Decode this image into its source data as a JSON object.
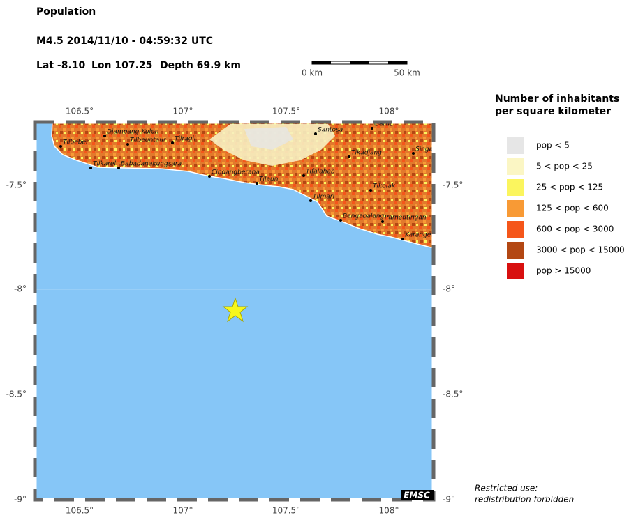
{
  "header": {
    "title": "Population",
    "event": "M4.5  2014/11/10 - 04:59:32 UTC",
    "lat": "Lat -8.10",
    "lon": "Lon 107.25",
    "depth": "Depth  69.9 km"
  },
  "scale": {
    "start": "0 km",
    "end": "50 km"
  },
  "map": {
    "lon_labels": [
      "106.5°",
      "107°",
      "107.5°",
      "108°"
    ],
    "lat_labels": [
      "-7.5°",
      "-8°",
      "-8.5°",
      "-9°"
    ],
    "places": [
      "Tilbeber",
      "Djampang Kulon",
      "Tilbeuntaur",
      "Tilragil",
      "Tilkarel",
      "Babadanakungsara",
      "Cindangberana",
      "Tilaun",
      "Santosa",
      "Garut",
      "Tikadjang",
      "Singa",
      "Tifalahab",
      "Tikolak",
      "Tilmari",
      "Bangabalang",
      "Pameutingan",
      "Karange"
    ],
    "watermark": "EMSC"
  },
  "legend": {
    "title": [
      "Number of inhabitants",
      "per square kilometer"
    ],
    "items": [
      {
        "label": "pop < 5",
        "color": "#e6e6e6"
      },
      {
        "label": "5 < pop < 25",
        "color": "#fbf6c4"
      },
      {
        "label": "25 < pop < 125",
        "color": "#fbf55e"
      },
      {
        "label": "125 < pop < 600",
        "color": "#f89a35"
      },
      {
        "label": "600 < pop < 3000",
        "color": "#f5561a"
      },
      {
        "label": "3000 < pop < 15000",
        "color": "#b34713"
      },
      {
        "label": "pop > 15000",
        "color": "#d8100f"
      }
    ]
  },
  "note": [
    "Restricted use:",
    "redistribution forbidden"
  ]
}
